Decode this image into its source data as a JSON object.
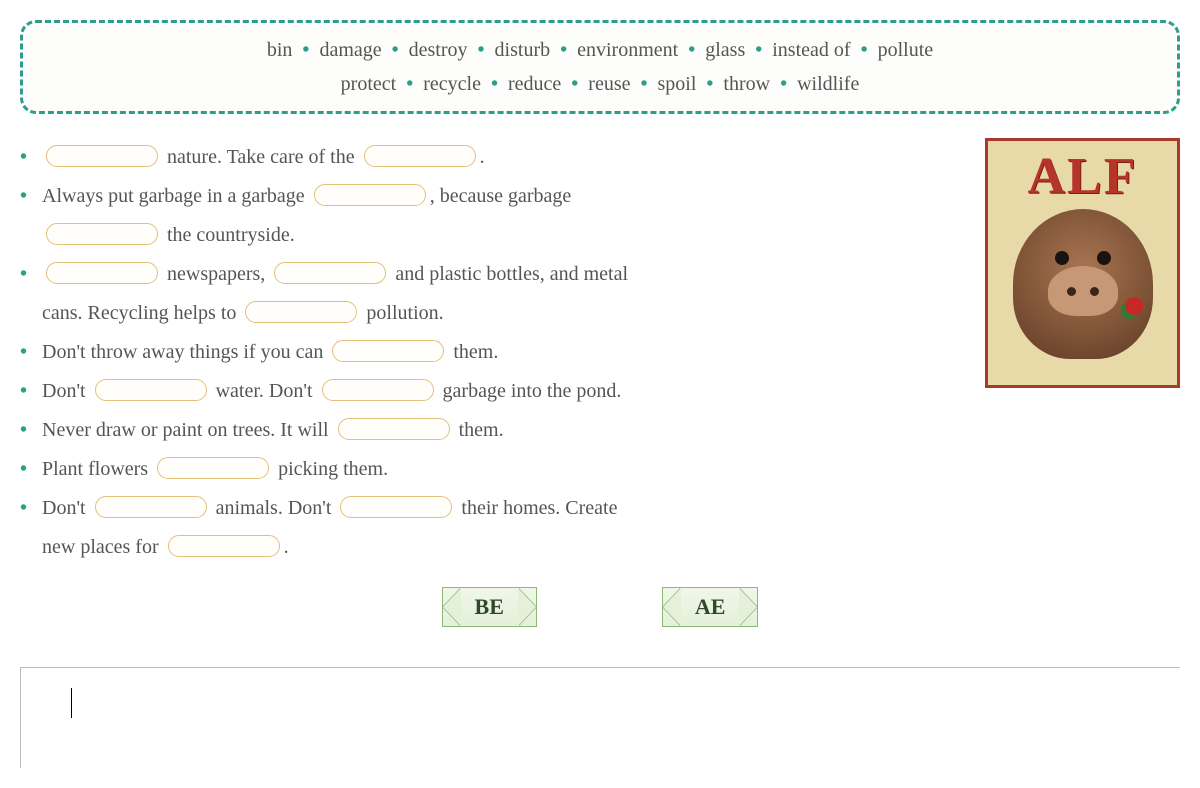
{
  "colors": {
    "dash_border": "#2b9f8a",
    "bullet": "#2b9f8a",
    "blank_border": "#e3c07a",
    "text": "#555555",
    "card_border": "#a73a2a",
    "card_bg": "#e8d9a8",
    "card_title": "#b7342a",
    "badge_bg": "#e4f0d9",
    "badge_border": "#8fb77a",
    "badge_text": "#2d4a2d"
  },
  "word_bank": {
    "row1": [
      "bin",
      "damage",
      "destroy",
      "disturb",
      "environment",
      "glass",
      "instead of",
      "pollute"
    ],
    "row2": [
      "protect",
      "recycle",
      "reduce",
      "reuse",
      "spoil",
      "throw",
      "wildlife"
    ]
  },
  "exercise": {
    "lines": [
      {
        "segments": [
          "[B] nature. Take care of the [B]."
        ]
      },
      {
        "segments": [
          "Always put garbage in a garbage [B], because garbage",
          "[B] the countryside."
        ]
      },
      {
        "segments": [
          "[B] newspapers, [B] and plastic bottles, and metal",
          "cans. Recycling helps to [B] pollution."
        ]
      },
      {
        "segments": [
          "Don't throw away things if you can [B] them."
        ]
      },
      {
        "segments": [
          "Don't [B] water. Don't [B] garbage into the pond."
        ]
      },
      {
        "segments": [
          "Never draw or paint on trees. It will [B] them."
        ]
      },
      {
        "segments": [
          "Plant flowers [B] picking them."
        ]
      },
      {
        "segments": [
          "Don't [B] animals. Don't [B] their homes. Create",
          "new places for [B]."
        ]
      }
    ]
  },
  "card": {
    "title": "ALF"
  },
  "badges": {
    "left": "BE",
    "right": "AE"
  }
}
